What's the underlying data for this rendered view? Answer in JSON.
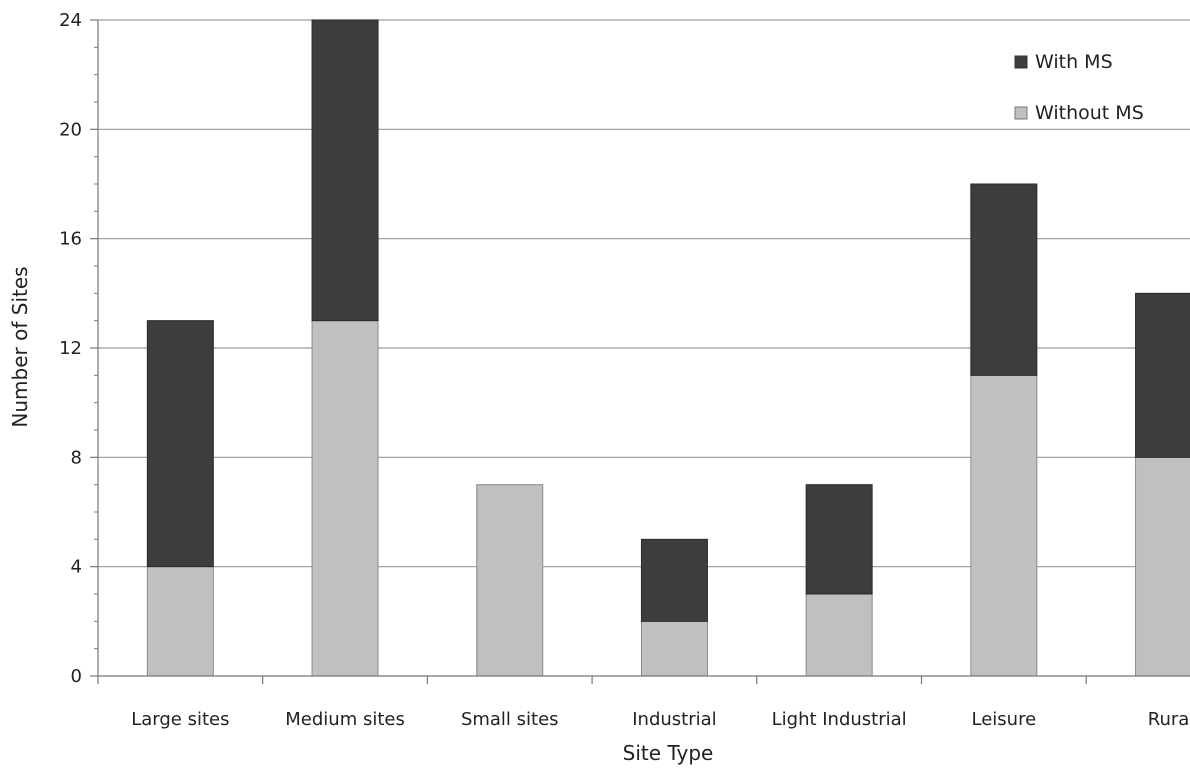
{
  "chart_data": {
    "type": "bar",
    "stacked": true,
    "categories": [
      "Large sites",
      "Medium sites",
      "Small sites",
      "Industrial",
      "Light Industrial",
      "Leisure",
      "Rura"
    ],
    "series": [
      {
        "name": "Without MS",
        "values": [
          4,
          13,
          7,
          2,
          3,
          11,
          8
        ],
        "color": "#c0c0c0"
      },
      {
        "name": "With MS",
        "values": [
          9,
          11,
          0,
          3,
          4,
          7,
          6
        ],
        "color": "#3d3d3d"
      }
    ],
    "xlabel": "Site Type",
    "ylabel": "Number of Sites",
    "ylim": [
      0,
      24
    ],
    "yticks": [
      "0",
      "4",
      "8",
      "12",
      "16",
      "20",
      "24"
    ],
    "grid": true,
    "legend": {
      "placement": "top-right",
      "items": [
        "With MS",
        "Without MS"
      ]
    }
  }
}
